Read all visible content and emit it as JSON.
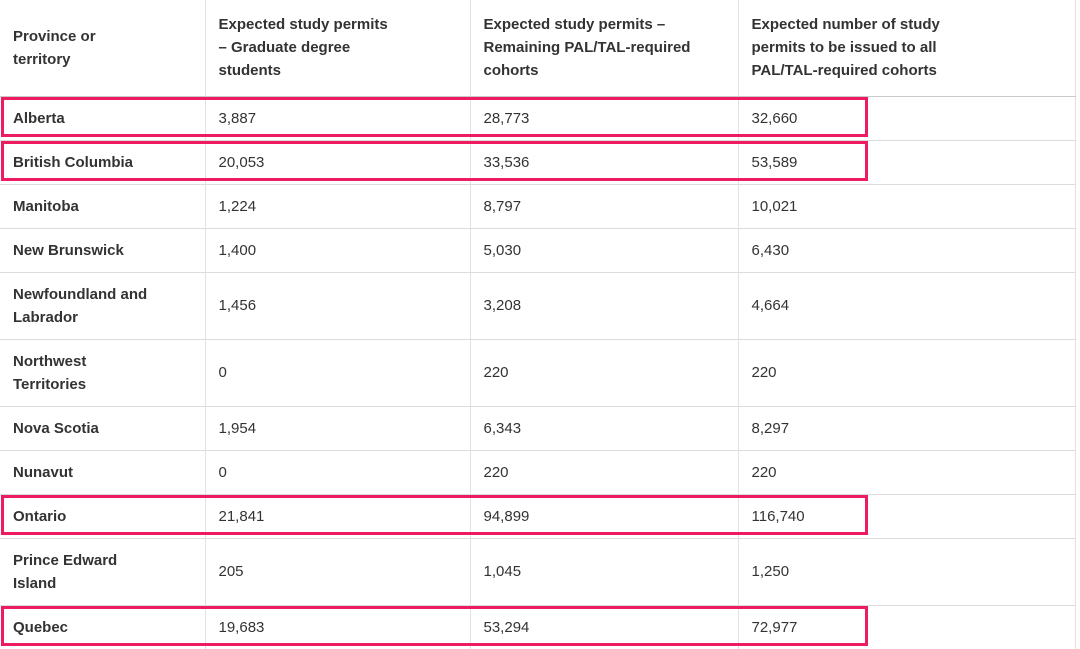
{
  "table": {
    "highlight_color": "#ed1b5f",
    "text_color": "#333333",
    "columns": [
      "Province or\nterritory",
      "Expected study permits\n– Graduate degree\nstudents",
      "Expected study permits –\nRemaining PAL/TAL-required\ncohorts",
      "Expected number of study\npermits to be issued to all\nPAL/TAL-required cohorts"
    ],
    "rows": [
      {
        "province": "Alberta",
        "values": [
          "3,887",
          "28,773",
          "32,660"
        ],
        "highlighted": true,
        "lines": 1
      },
      {
        "province": "British Columbia",
        "values": [
          "20,053",
          "33,536",
          "53,589"
        ],
        "highlighted": true,
        "lines": 1
      },
      {
        "province": "Manitoba",
        "values": [
          "1,224",
          "8,797",
          "10,021"
        ],
        "highlighted": false,
        "lines": 1
      },
      {
        "province": "New Brunswick",
        "values": [
          "1,400",
          "5,030",
          "6,430"
        ],
        "highlighted": false,
        "lines": 1
      },
      {
        "province": "Newfoundland and\nLabrador",
        "values": [
          "1,456",
          "3,208",
          "4,664"
        ],
        "highlighted": false,
        "lines": 2
      },
      {
        "province": "Northwest\nTerritories",
        "values": [
          "0",
          "220",
          "220"
        ],
        "highlighted": false,
        "lines": 2
      },
      {
        "province": "Nova Scotia",
        "values": [
          "1,954",
          "6,343",
          "8,297"
        ],
        "highlighted": false,
        "lines": 1
      },
      {
        "province": "Nunavut",
        "values": [
          "0",
          "220",
          "220"
        ],
        "highlighted": false,
        "lines": 1
      },
      {
        "province": "Ontario",
        "values": [
          "21,841",
          "94,899",
          "116,740"
        ],
        "highlighted": true,
        "lines": 1
      },
      {
        "province": "Prince Edward\nIsland",
        "values": [
          "205",
          "1,045",
          "1,250"
        ],
        "highlighted": false,
        "lines": 2
      },
      {
        "province": "Quebec",
        "values": [
          "19,683",
          "53,294",
          "72,977"
        ],
        "highlighted": true,
        "lines": 1
      }
    ]
  }
}
